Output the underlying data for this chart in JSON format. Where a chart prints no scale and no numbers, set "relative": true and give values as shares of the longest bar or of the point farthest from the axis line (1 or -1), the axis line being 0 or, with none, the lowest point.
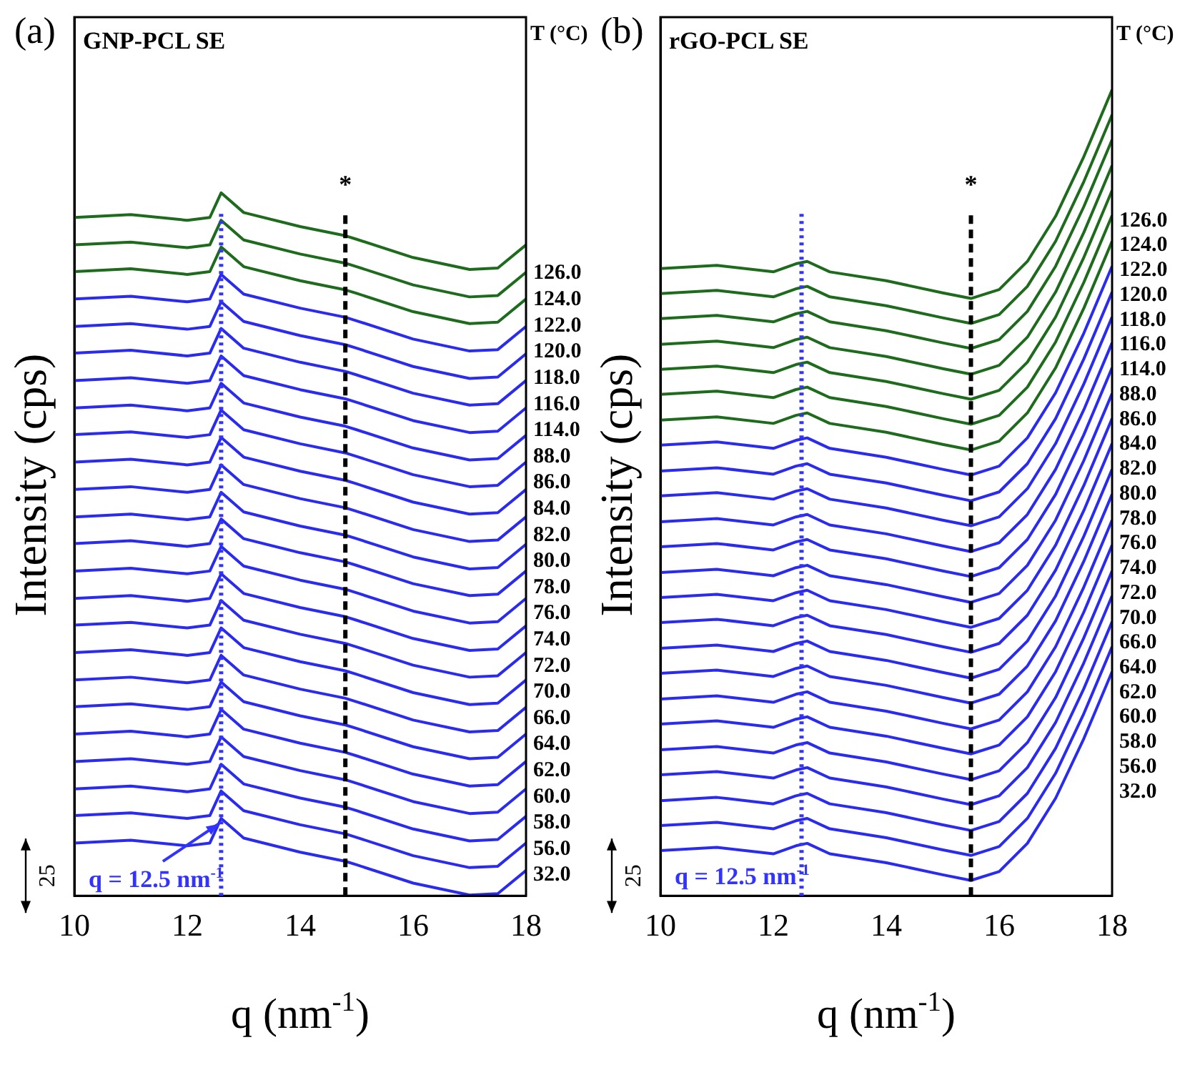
{
  "chart_data": [
    {
      "type": "line",
      "title": "GNP-PCL SE",
      "xlabel": "q (nm$^{-1}$)",
      "ylabel": "Intensity (cps)",
      "legend_title": "T (°C)",
      "relative": true,
      "tick_labels": "x",
      "marker": "none",
      "line_style": "solid",
      "annotations": [
        "(a)",
        "25",
        {
          "text": "q = 12.5 nm$^{-1}$",
          "x": 12.6,
          "y": 0.11
        }
      ],
      "xlim": [
        10,
        18
      ],
      "xticks": [
        10,
        12,
        14,
        16,
        18
      ],
      "ref_lines": [
        {
          "axis": "x",
          "value": 12.6,
          "color": "#3333ff",
          "line_style": "dotted"
        },
        {
          "axis": "x",
          "value": 14.8,
          "label": "*",
          "color": "#000000",
          "line_style": "dashed"
        }
      ],
      "x": [
        10,
        11,
        12,
        12.4,
        12.6,
        13,
        14,
        14.8,
        15,
        16,
        17,
        17.5,
        18
      ],
      "series": [
        {
          "name": "126.0",
          "color": "#1e6b1e",
          "values": [
            0.965,
            0.969,
            0.961,
            0.965,
            1.0,
            0.972,
            0.952,
            0.939,
            0.934,
            0.908,
            0.891,
            0.893,
            0.926
          ]
        },
        {
          "name": "124.0",
          "color": "#1e6b1e",
          "values": [
            0.926,
            0.93,
            0.922,
            0.926,
            0.961,
            0.933,
            0.913,
            0.9,
            0.895,
            0.869,
            0.852,
            0.854,
            0.887
          ]
        },
        {
          "name": "122.0",
          "color": "#1e6b1e",
          "values": [
            0.888,
            0.892,
            0.884,
            0.888,
            0.923,
            0.895,
            0.875,
            0.862,
            0.857,
            0.831,
            0.814,
            0.816,
            0.849
          ]
        },
        {
          "name": "120.0",
          "color": "#2b2bf0",
          "values": [
            0.849,
            0.853,
            0.845,
            0.849,
            0.884,
            0.856,
            0.836,
            0.823,
            0.818,
            0.792,
            0.775,
            0.777,
            0.81
          ]
        },
        {
          "name": "118.0",
          "color": "#2b2bf0",
          "values": [
            0.81,
            0.814,
            0.806,
            0.81,
            0.845,
            0.817,
            0.797,
            0.784,
            0.779,
            0.753,
            0.736,
            0.738,
            0.771
          ]
        },
        {
          "name": "116.0",
          "color": "#2b2bf0",
          "values": [
            0.772,
            0.776,
            0.768,
            0.772,
            0.807,
            0.779,
            0.759,
            0.746,
            0.741,
            0.715,
            0.698,
            0.7,
            0.733
          ]
        },
        {
          "name": "114.0",
          "color": "#2b2bf0",
          "values": [
            0.733,
            0.737,
            0.729,
            0.733,
            0.768,
            0.74,
            0.72,
            0.707,
            0.702,
            0.676,
            0.659,
            0.661,
            0.694
          ]
        },
        {
          "name": "88.0",
          "color": "#2b2bf0",
          "values": [
            0.694,
            0.698,
            0.69,
            0.694,
            0.729,
            0.701,
            0.681,
            0.668,
            0.663,
            0.637,
            0.62,
            0.622,
            0.655
          ]
        },
        {
          "name": "86.0",
          "color": "#2b2bf0",
          "values": [
            0.656,
            0.66,
            0.652,
            0.656,
            0.691,
            0.663,
            0.643,
            0.63,
            0.625,
            0.599,
            0.582,
            0.584,
            0.617
          ]
        },
        {
          "name": "84.0",
          "color": "#2b2bf0",
          "values": [
            0.617,
            0.621,
            0.613,
            0.617,
            0.652,
            0.624,
            0.604,
            0.591,
            0.586,
            0.56,
            0.543,
            0.545,
            0.578
          ]
        },
        {
          "name": "82.0",
          "color": "#2b2bf0",
          "values": [
            0.578,
            0.582,
            0.574,
            0.578,
            0.613,
            0.585,
            0.565,
            0.552,
            0.547,
            0.521,
            0.504,
            0.506,
            0.539
          ]
        },
        {
          "name": "80.0",
          "color": "#2b2bf0",
          "values": [
            0.539,
            0.543,
            0.535,
            0.539,
            0.574,
            0.546,
            0.526,
            0.513,
            0.508,
            0.482,
            0.465,
            0.467,
            0.5
          ]
        },
        {
          "name": "78.0",
          "color": "#2b2bf0",
          "values": [
            0.501,
            0.505,
            0.497,
            0.501,
            0.536,
            0.508,
            0.488,
            0.475,
            0.47,
            0.444,
            0.427,
            0.429,
            0.462
          ]
        },
        {
          "name": "76.0",
          "color": "#2b2bf0",
          "values": [
            0.462,
            0.466,
            0.458,
            0.462,
            0.497,
            0.469,
            0.449,
            0.436,
            0.431,
            0.405,
            0.388,
            0.39,
            0.423
          ]
        },
        {
          "name": "74.0",
          "color": "#2b2bf0",
          "values": [
            0.423,
            0.427,
            0.419,
            0.423,
            0.458,
            0.43,
            0.41,
            0.397,
            0.392,
            0.366,
            0.349,
            0.351,
            0.384
          ]
        },
        {
          "name": "72.0",
          "color": "#2b2bf0",
          "values": [
            0.385,
            0.389,
            0.381,
            0.385,
            0.42,
            0.392,
            0.372,
            0.359,
            0.354,
            0.328,
            0.311,
            0.313,
            0.346
          ]
        },
        {
          "name": "70.0",
          "color": "#2b2bf0",
          "values": [
            0.346,
            0.35,
            0.342,
            0.346,
            0.381,
            0.353,
            0.333,
            0.32,
            0.315,
            0.289,
            0.272,
            0.274,
            0.307
          ]
        },
        {
          "name": "66.0",
          "color": "#2b2bf0",
          "values": [
            0.307,
            0.311,
            0.303,
            0.307,
            0.342,
            0.314,
            0.294,
            0.281,
            0.276,
            0.25,
            0.233,
            0.235,
            0.268
          ]
        },
        {
          "name": "64.0",
          "color": "#2b2bf0",
          "values": [
            0.269,
            0.273,
            0.265,
            0.269,
            0.304,
            0.276,
            0.256,
            0.243,
            0.238,
            0.212,
            0.195,
            0.197,
            0.23
          ]
        },
        {
          "name": "62.0",
          "color": "#2b2bf0",
          "values": [
            0.23,
            0.234,
            0.226,
            0.23,
            0.265,
            0.237,
            0.217,
            0.204,
            0.199,
            0.173,
            0.156,
            0.158,
            0.191
          ]
        },
        {
          "name": "60.0",
          "color": "#2b2bf0",
          "values": [
            0.191,
            0.195,
            0.187,
            0.191,
            0.226,
            0.198,
            0.178,
            0.165,
            0.16,
            0.134,
            0.117,
            0.119,
            0.152
          ]
        },
        {
          "name": "58.0",
          "color": "#2b2bf0",
          "values": [
            0.152,
            0.156,
            0.148,
            0.152,
            0.187,
            0.159,
            0.139,
            0.126,
            0.121,
            0.095,
            0.078,
            0.08,
            0.113
          ]
        },
        {
          "name": "56.0",
          "color": "#2b2bf0",
          "values": [
            0.114,
            0.118,
            0.11,
            0.114,
            0.149,
            0.121,
            0.101,
            0.088,
            0.083,
            0.057,
            0.04,
            0.042,
            0.075
          ]
        },
        {
          "name": "32.0",
          "color": "#2b2bf0",
          "values": [
            0.075,
            0.079,
            0.071,
            0.075,
            0.11,
            0.082,
            0.062,
            0.049,
            0.044,
            0.018,
            0.001,
            0.003,
            0.036
          ]
        }
      ]
    },
    {
      "type": "line",
      "title": "rGO-PCL SE",
      "xlabel": "q (nm$^{-1}$)",
      "ylabel": "Intensity (cps)",
      "legend_title": "T (°C)",
      "relative": true,
      "tick_labels": "x",
      "marker": "none",
      "line_style": "solid",
      "annotations": [
        "(b)",
        "25",
        "q = 12.5 nm$^{-1}$"
      ],
      "xlim": [
        10,
        18
      ],
      "xticks": [
        10,
        12,
        14,
        16,
        18
      ],
      "ref_lines": [
        {
          "axis": "x",
          "value": 12.5,
          "color": "#3333ff",
          "line_style": "dotted"
        },
        {
          "axis": "x",
          "value": 15.5,
          "label": "*",
          "color": "#000000",
          "line_style": "dashed"
        }
      ],
      "x": [
        10,
        11,
        12,
        12.4,
        12.6,
        13,
        14,
        15,
        15.5,
        16,
        16.5,
        17,
        17.5,
        18
      ],
      "series": [
        {
          "name": "126.0",
          "color": "#1e6b1e",
          "values": [
            0.778,
            0.782,
            0.774,
            0.784,
            0.787,
            0.774,
            0.763,
            0.748,
            0.741,
            0.752,
            0.787,
            0.843,
            0.917,
            1.0
          ]
        },
        {
          "name": "124.0",
          "color": "#1e6b1e",
          "values": [
            0.747,
            0.751,
            0.743,
            0.753,
            0.756,
            0.743,
            0.732,
            0.717,
            0.71,
            0.721,
            0.756,
            0.812,
            0.886,
            0.969
          ]
        },
        {
          "name": "122.0",
          "color": "#1e6b1e",
          "values": [
            0.716,
            0.72,
            0.712,
            0.722,
            0.725,
            0.712,
            0.701,
            0.686,
            0.679,
            0.69,
            0.725,
            0.781,
            0.855,
            0.938
          ]
        },
        {
          "name": "120.0",
          "color": "#1e6b1e",
          "values": [
            0.684,
            0.688,
            0.68,
            0.69,
            0.693,
            0.68,
            0.669,
            0.654,
            0.647,
            0.658,
            0.693,
            0.749,
            0.823,
            0.906
          ]
        },
        {
          "name": "118.0",
          "color": "#1e6b1e",
          "values": [
            0.653,
            0.657,
            0.649,
            0.659,
            0.662,
            0.649,
            0.638,
            0.623,
            0.616,
            0.627,
            0.662,
            0.718,
            0.792,
            0.875
          ]
        },
        {
          "name": "116.0",
          "color": "#1e6b1e",
          "values": [
            0.622,
            0.626,
            0.618,
            0.628,
            0.631,
            0.618,
            0.607,
            0.592,
            0.585,
            0.596,
            0.631,
            0.687,
            0.761,
            0.844
          ]
        },
        {
          "name": "114.0",
          "color": "#1e6b1e",
          "values": [
            0.59,
            0.594,
            0.586,
            0.596,
            0.599,
            0.586,
            0.575,
            0.56,
            0.553,
            0.564,
            0.599,
            0.655,
            0.729,
            0.812
          ]
        },
        {
          "name": "88.0",
          "color": "#2b2bf0",
          "values": [
            0.559,
            0.563,
            0.555,
            0.565,
            0.568,
            0.555,
            0.544,
            0.529,
            0.522,
            0.533,
            0.568,
            0.624,
            0.698,
            0.781
          ]
        },
        {
          "name": "86.0",
          "color": "#2b2bf0",
          "values": [
            0.527,
            0.531,
            0.523,
            0.533,
            0.536,
            0.523,
            0.512,
            0.497,
            0.49,
            0.501,
            0.536,
            0.592,
            0.666,
            0.749
          ]
        },
        {
          "name": "84.0",
          "color": "#2b2bf0",
          "values": [
            0.496,
            0.5,
            0.492,
            0.502,
            0.505,
            0.492,
            0.481,
            0.466,
            0.459,
            0.47,
            0.505,
            0.561,
            0.635,
            0.718
          ]
        },
        {
          "name": "82.0",
          "color": "#2b2bf0",
          "values": [
            0.464,
            0.468,
            0.46,
            0.47,
            0.473,
            0.46,
            0.449,
            0.434,
            0.427,
            0.438,
            0.473,
            0.529,
            0.603,
            0.686
          ]
        },
        {
          "name": "80.0",
          "color": "#2b2bf0",
          "values": [
            0.433,
            0.437,
            0.429,
            0.439,
            0.442,
            0.429,
            0.418,
            0.403,
            0.396,
            0.407,
            0.442,
            0.498,
            0.572,
            0.655
          ]
        },
        {
          "name": "78.0",
          "color": "#2b2bf0",
          "values": [
            0.401,
            0.405,
            0.397,
            0.407,
            0.41,
            0.397,
            0.386,
            0.371,
            0.364,
            0.375,
            0.41,
            0.466,
            0.54,
            0.623
          ]
        },
        {
          "name": "76.0",
          "color": "#2b2bf0",
          "values": [
            0.37,
            0.374,
            0.366,
            0.376,
            0.379,
            0.366,
            0.355,
            0.34,
            0.333,
            0.344,
            0.379,
            0.435,
            0.509,
            0.592
          ]
        },
        {
          "name": "74.0",
          "color": "#2b2bf0",
          "values": [
            0.339,
            0.343,
            0.335,
            0.345,
            0.348,
            0.335,
            0.324,
            0.309,
            0.302,
            0.313,
            0.348,
            0.404,
            0.478,
            0.561
          ]
        },
        {
          "name": "72.0",
          "color": "#2b2bf0",
          "values": [
            0.307,
            0.311,
            0.303,
            0.313,
            0.316,
            0.303,
            0.292,
            0.277,
            0.27,
            0.281,
            0.316,
            0.372,
            0.446,
            0.529
          ]
        },
        {
          "name": "70.0",
          "color": "#2b2bf0",
          "values": [
            0.276,
            0.28,
            0.272,
            0.282,
            0.285,
            0.272,
            0.261,
            0.246,
            0.239,
            0.25,
            0.285,
            0.341,
            0.415,
            0.498
          ]
        },
        {
          "name": "66.0",
          "color": "#2b2bf0",
          "values": [
            0.244,
            0.248,
            0.24,
            0.25,
            0.253,
            0.24,
            0.229,
            0.214,
            0.207,
            0.218,
            0.253,
            0.309,
            0.383,
            0.466
          ]
        },
        {
          "name": "64.0",
          "color": "#2b2bf0",
          "values": [
            0.213,
            0.217,
            0.209,
            0.219,
            0.222,
            0.209,
            0.198,
            0.183,
            0.176,
            0.187,
            0.222,
            0.278,
            0.352,
            0.435
          ]
        },
        {
          "name": "62.0",
          "color": "#2b2bf0",
          "values": [
            0.181,
            0.185,
            0.177,
            0.187,
            0.19,
            0.177,
            0.166,
            0.151,
            0.144,
            0.155,
            0.19,
            0.246,
            0.32,
            0.403
          ]
        },
        {
          "name": "60.0",
          "color": "#2b2bf0",
          "values": [
            0.15,
            0.154,
            0.146,
            0.156,
            0.159,
            0.146,
            0.135,
            0.12,
            0.113,
            0.124,
            0.159,
            0.215,
            0.289,
            0.372
          ]
        },
        {
          "name": "58.0",
          "color": "#2b2bf0",
          "values": [
            0.118,
            0.122,
            0.114,
            0.124,
            0.127,
            0.114,
            0.103,
            0.088,
            0.081,
            0.092,
            0.127,
            0.183,
            0.257,
            0.34
          ]
        },
        {
          "name": "56.0",
          "color": "#2b2bf0",
          "values": [
            0.087,
            0.091,
            0.083,
            0.093,
            0.096,
            0.083,
            0.072,
            0.057,
            0.05,
            0.061,
            0.096,
            0.152,
            0.226,
            0.309
          ]
        },
        {
          "name": "32.0",
          "color": "#2b2bf0",
          "values": [
            0.056,
            0.06,
            0.052,
            0.062,
            0.065,
            0.052,
            0.041,
            0.026,
            0.019,
            0.03,
            0.065,
            0.121,
            0.195,
            0.278
          ]
        }
      ]
    }
  ]
}
